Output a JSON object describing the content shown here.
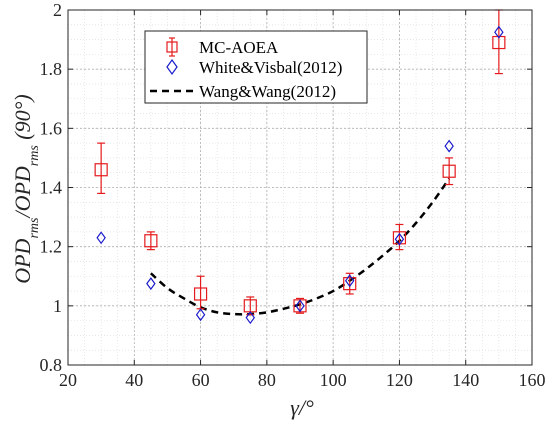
{
  "chart_data": {
    "type": "scatter",
    "xlabel": "γ/°",
    "ylabel": "OPD_rms/OPD_rms(90°)",
    "xlim": [
      20,
      160
    ],
    "ylim": [
      0.8,
      2.0
    ],
    "x_ticks": [
      "20",
      "40",
      "60",
      "80",
      "100",
      "120",
      "140",
      "160"
    ],
    "y_ticks": [
      "0.8",
      "1",
      "1.2",
      "1.4",
      "1.6",
      "1.8",
      "2"
    ],
    "grid": true,
    "minor_grid": true,
    "legend_position": "top-center",
    "series": [
      {
        "name": "MC-AOEA",
        "marker": "square-errorbar",
        "color": "#e41a1c",
        "x": [
          30,
          45,
          60,
          75,
          90,
          105,
          120,
          135,
          150
        ],
        "y": [
          1.46,
          1.22,
          1.04,
          1.0,
          1.0,
          1.075,
          1.23,
          1.455,
          1.89
        ],
        "err_low": [
          0.08,
          0.03,
          0.05,
          0.03,
          0.025,
          0.035,
          0.04,
          0.045,
          0.105
        ],
        "err_high": [
          0.09,
          0.03,
          0.06,
          0.03,
          0.025,
          0.035,
          0.045,
          0.045,
          0.11
        ]
      },
      {
        "name": "White&Visbal(2012)",
        "marker": "diamond",
        "color": "#1a1acc",
        "x": [
          30,
          45,
          60,
          75,
          90,
          105,
          120,
          135,
          150
        ],
        "y": [
          1.23,
          1.075,
          0.97,
          0.96,
          1.0,
          1.085,
          1.225,
          1.54,
          1.925
        ]
      },
      {
        "name": "Wang&Wang(2012)",
        "marker": "dashed-line",
        "color": "#000000",
        "x": [
          45,
          50,
          55,
          60,
          65,
          70,
          75,
          80,
          85,
          90,
          95,
          100,
          105,
          110,
          115,
          120,
          125,
          130,
          135
        ],
        "y": [
          1.11,
          1.06,
          1.025,
          0.995,
          0.978,
          0.972,
          0.972,
          0.978,
          0.99,
          1.005,
          1.025,
          1.05,
          1.085,
          1.125,
          1.17,
          1.22,
          1.28,
          1.35,
          1.43
        ]
      }
    ]
  }
}
